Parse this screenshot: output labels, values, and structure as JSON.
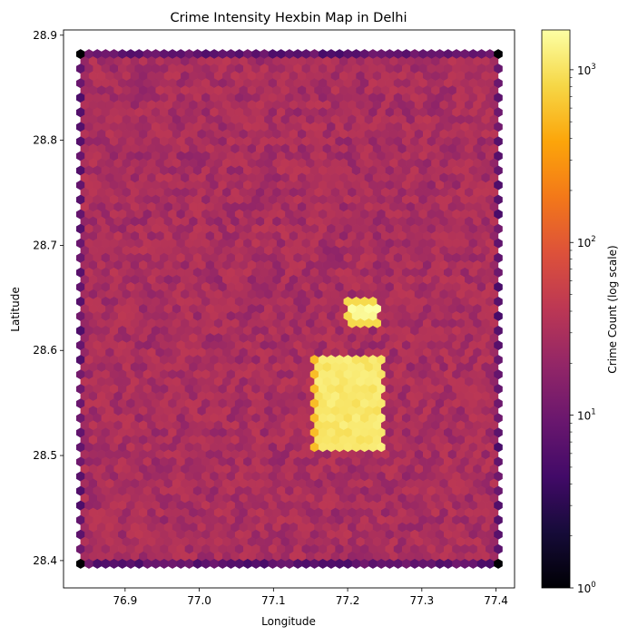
{
  "chart_data": {
    "type": "heatmap",
    "subtype": "hexbin",
    "title": "Crime Intensity Hexbin Map in Delhi",
    "xlabel": "Longitude",
    "ylabel": "Latitude",
    "xlim": [
      76.817,
      77.425
    ],
    "ylim": [
      28.374,
      28.905
    ],
    "xticks": [
      76.9,
      77.0,
      77.1,
      77.2,
      77.3,
      77.4
    ],
    "xtick_labels": [
      "76.9",
      "77.0",
      "77.1",
      "77.2",
      "77.3",
      "77.4"
    ],
    "yticks": [
      28.4,
      28.5,
      28.6,
      28.7,
      28.8,
      28.9
    ],
    "ytick_labels": [
      "28.4",
      "28.5",
      "28.6",
      "28.7",
      "28.8",
      "28.9"
    ],
    "grid": false,
    "colormap": "inferno",
    "colorbar": {
      "label": "Crime Count (log scale)",
      "scale": "log",
      "range": [
        1,
        1700
      ],
      "major_ticks": [
        1,
        10,
        100,
        1000
      ],
      "major_tick_labels": [
        "10",
        "10",
        "10",
        "10"
      ],
      "major_tick_exponents": [
        "0",
        "1",
        "2",
        "3"
      ]
    },
    "data_extent": {
      "lon": [
        76.84,
        77.403
      ],
      "lat": [
        28.397,
        28.882
      ]
    },
    "background_count": 30,
    "edge_count": 8,
    "corner_count": 1,
    "hotspots": [
      {
        "lon": [
          77.152,
          77.25
        ],
        "lat": [
          28.502,
          28.596
        ],
        "count": 1100
      },
      {
        "lon": [
          77.2,
          77.245
        ],
        "lat": [
          28.622,
          28.648
        ],
        "count": 1700
      }
    ]
  }
}
